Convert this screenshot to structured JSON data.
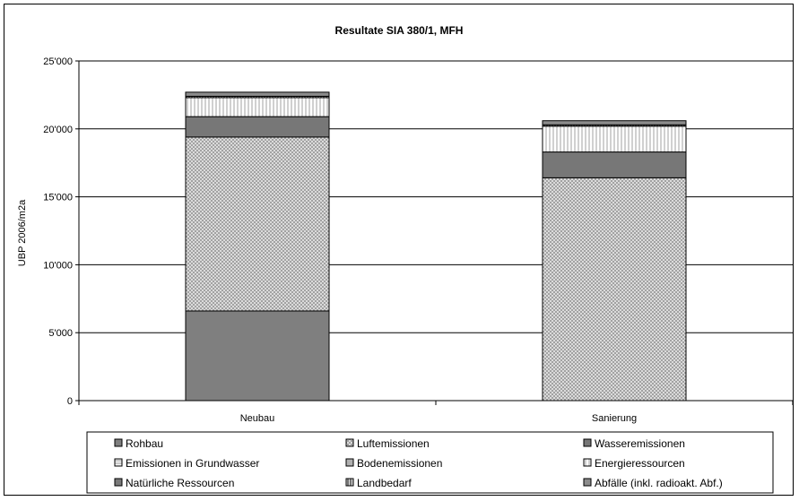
{
  "chart_data": {
    "type": "bar",
    "stacked": true,
    "title": "Resultate SIA 380/1, MFH",
    "xlabel": "",
    "ylabel": "UBP 2006/m2a",
    "ylim": [
      0,
      25000
    ],
    "yticks": [
      0,
      5000,
      10000,
      15000,
      20000,
      25000
    ],
    "ytick_labels": [
      "0",
      "5'000",
      "10'000",
      "15'000",
      "20'000",
      "25'000"
    ],
    "grid": true,
    "legend_position": "bottom",
    "categories": [
      "Neubau",
      "Sanierung"
    ],
    "series": [
      {
        "name": "Rohbau",
        "values": [
          6600,
          0
        ],
        "color": "#7f7f7f",
        "pattern": "solid"
      },
      {
        "name": "Luftemissionen",
        "values": [
          12800,
          16400
        ],
        "color": "#c8c8c8",
        "pattern": "crosshatch"
      },
      {
        "name": "Wasseremissionen",
        "values": [
          1500,
          1900
        ],
        "color": "#777777",
        "pattern": "solid"
      },
      {
        "name": "Emissionen in Grundwasser",
        "values": [
          0,
          0
        ],
        "color": "#d0d0d0",
        "pattern": "hlines"
      },
      {
        "name": "Bodenemissionen",
        "values": [
          0,
          0
        ],
        "color": "#b0b0b0",
        "pattern": "solid"
      },
      {
        "name": "Energieressourcen",
        "values": [
          1400,
          1900
        ],
        "color": "#ffffff",
        "pattern": "vlines"
      },
      {
        "name": "Natürliche Ressourcen",
        "values": [
          0,
          0
        ],
        "color": "#7a7a7a",
        "pattern": "solid"
      },
      {
        "name": "Landbedarf",
        "values": [
          100,
          100
        ],
        "color": "#6e6e6e",
        "pattern": "vstripes"
      },
      {
        "name": "Abfälle (inkl. radioakt. Abf.)",
        "values": [
          300,
          300
        ],
        "color": "#8c8c8c",
        "pattern": "solid"
      }
    ]
  }
}
